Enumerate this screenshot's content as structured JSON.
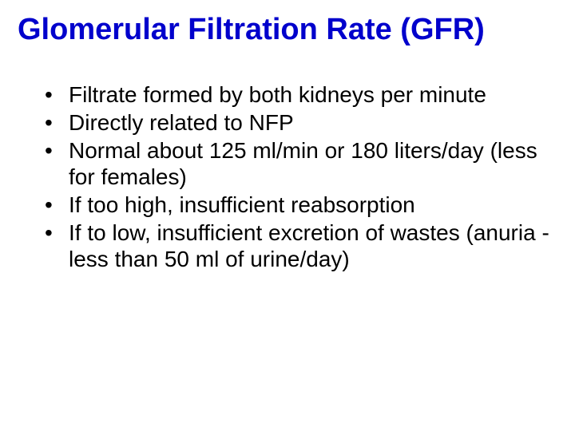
{
  "slide": {
    "title": "Glomerular Filtration Rate (GFR)",
    "title_color": "#0000cc",
    "title_fontsize": 38,
    "title_weight": "bold",
    "bullet_fontsize": 28,
    "bullet_color": "#000000",
    "background_color": "#ffffff",
    "bullets": [
      "Filtrate formed by both kidneys per minute",
      "Directly related to NFP",
      "Normal about 125 ml/min or 180 liters/day (less for females)",
      "If too high, insufficient reabsorption",
      "If to low, insufficient excretion of wastes (anuria - less than 50 ml of urine/day)"
    ]
  }
}
